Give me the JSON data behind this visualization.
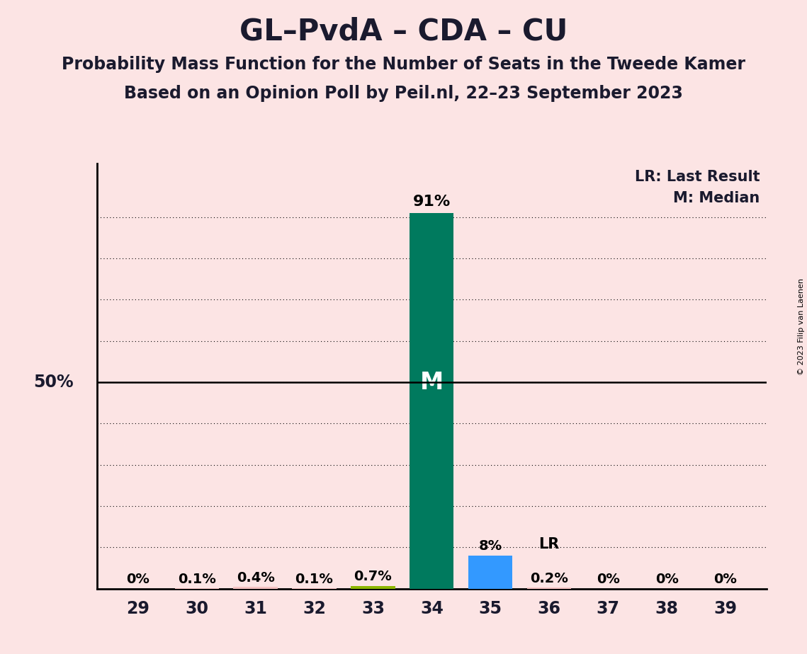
{
  "title": "GL–PvdA – CDA – CU",
  "subtitle1": "Probability Mass Function for the Number of Seats in the Tweede Kamer",
  "subtitle2": "Based on an Opinion Poll by Peil.nl, 22–23 September 2023",
  "copyright": "© 2023 Filip van Laenen",
  "legend_lr": "LR: Last Result",
  "legend_m": "M: Median",
  "seats": [
    29,
    30,
    31,
    32,
    33,
    34,
    35,
    36,
    37,
    38,
    39
  ],
  "probabilities": [
    0.0,
    0.1,
    0.4,
    0.1,
    0.7,
    91.0,
    8.0,
    0.2,
    0.0,
    0.0,
    0.0
  ],
  "labels": [
    "0%",
    "0.1%",
    "0.4%",
    "0.1%",
    "0.7%",
    "",
    "8%",
    "0.2%",
    "0%",
    "0%",
    "0%"
  ],
  "bar_colors": [
    "#f4c2c2",
    "#f4c2c2",
    "#f4c2c2",
    "#f4c2c2",
    "#8db600",
    "#007A5E",
    "#3399FF",
    "#f4c2c2",
    "#f4c2c2",
    "#f4c2c2",
    "#f4c2c2"
  ],
  "median_seat": 34,
  "lr_seat": 36,
  "background_color": "#fce4e4",
  "grid_values": [
    10,
    20,
    30,
    40,
    50,
    60,
    70,
    80,
    90
  ],
  "title_fontsize": 30,
  "subtitle_fontsize": 17,
  "label_fontsize": 14,
  "tick_fontsize": 17,
  "legend_fontsize": 15,
  "ylabel_fontsize": 17
}
